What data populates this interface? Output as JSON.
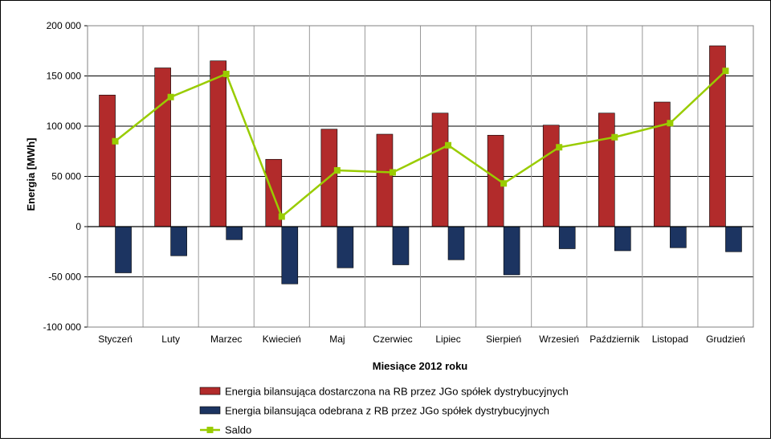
{
  "chart_data": {
    "type": "bar",
    "xlabel": "Miesiące 2012 roku",
    "ylabel": "Energia [MWh]",
    "ylim": [
      -100000,
      200000
    ],
    "yticks": [
      200000,
      150000,
      100000,
      50000,
      0,
      -50000,
      -100000
    ],
    "ytick_labels": [
      "200 000",
      "150 000",
      "100 000",
      "50 000",
      "0",
      "-50 000",
      "-100 000"
    ],
    "grid": true,
    "legend_position": "bottom",
    "categories": [
      "Styczeń",
      "Luty",
      "Marzec",
      "Kwiecień",
      "Maj",
      "Czerwiec",
      "Lipiec",
      "Sierpień",
      "Wrzesień",
      "Październik",
      "Listopad",
      "Grudzień"
    ],
    "series": [
      {
        "name": "Energia bilansująca dostarczona na RB przez JGo spółek dystrybucyjnych",
        "type": "bar",
        "color": "#b22b2b",
        "values": [
          131000,
          158000,
          165000,
          67000,
          97000,
          92000,
          113000,
          91000,
          101000,
          113000,
          124000,
          180000
        ]
      },
      {
        "name": "Energia bilansująca odebrana z RB przez JGo spółek dystrybucyjnych",
        "type": "bar",
        "color": "#1c3461",
        "values": [
          -46000,
          -29000,
          -13000,
          -57000,
          -41000,
          -38000,
          -33000,
          -48000,
          -22000,
          -24000,
          -21000,
          -25000
        ]
      },
      {
        "name": "Saldo",
        "type": "line",
        "color": "#99cc00",
        "values": [
          85000,
          129000,
          152000,
          10000,
          56000,
          54000,
          81000,
          43000,
          79000,
          89000,
          103000,
          155000
        ]
      }
    ]
  }
}
